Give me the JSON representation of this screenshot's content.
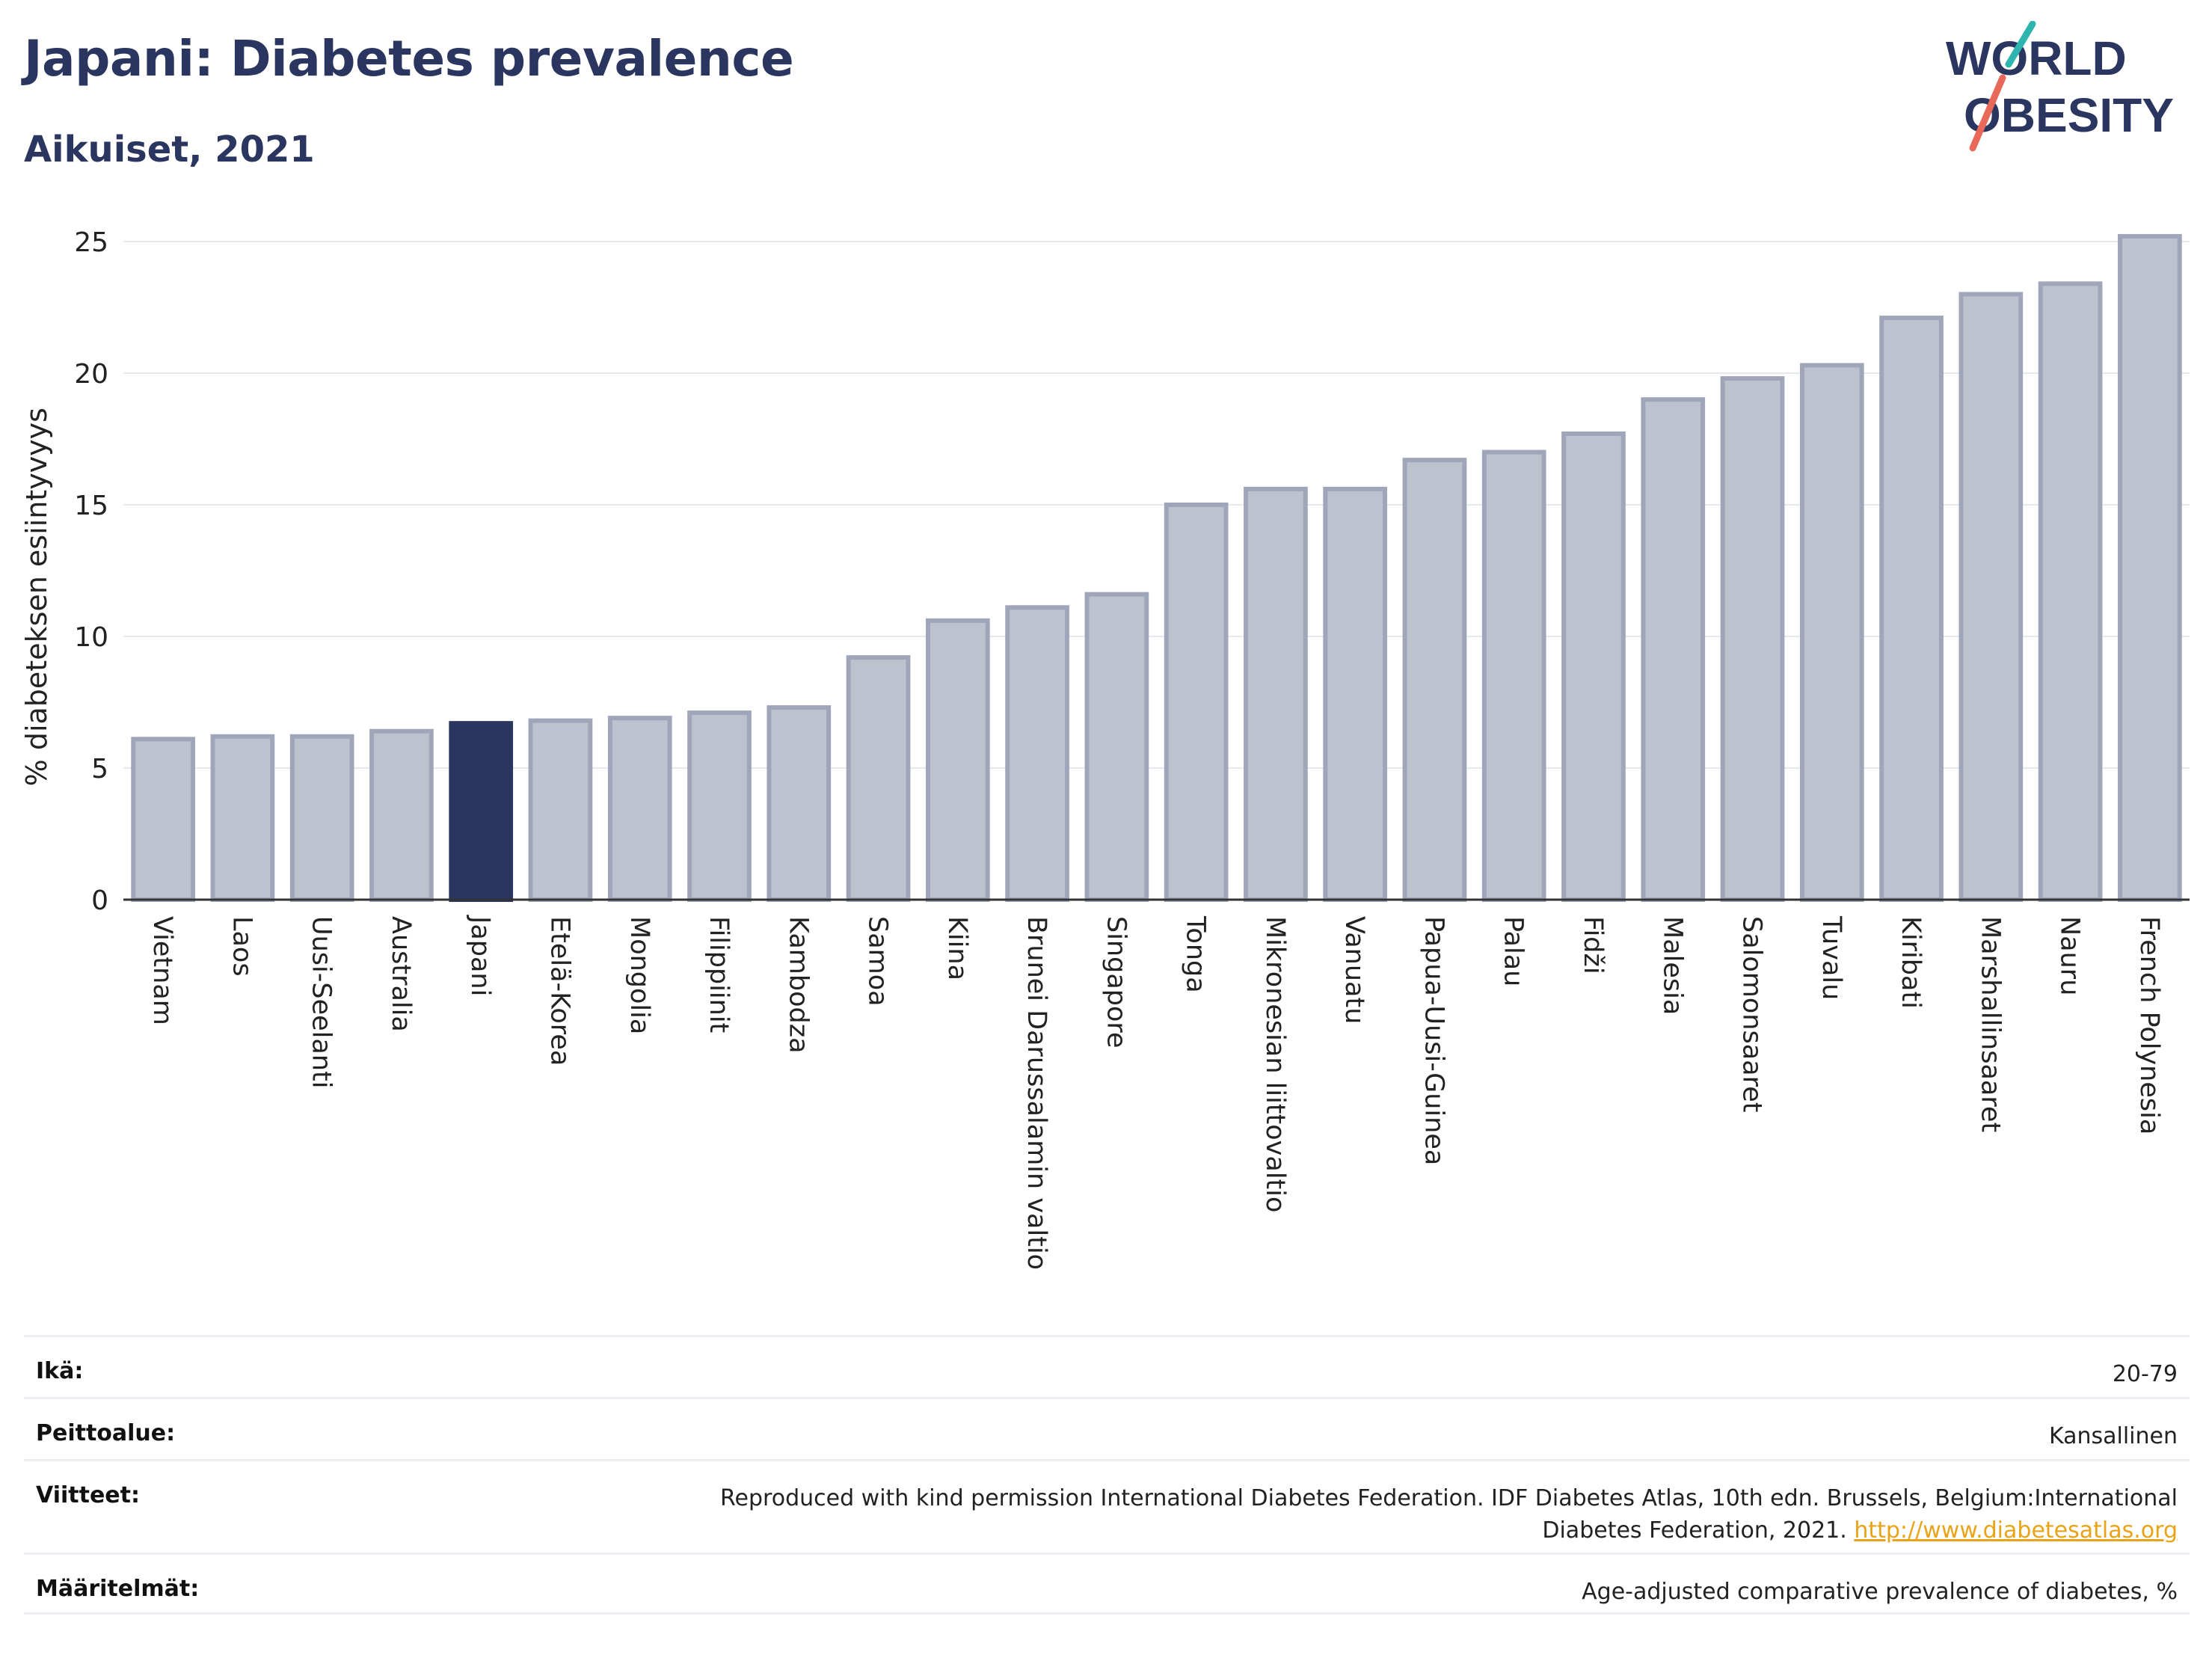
{
  "header": {
    "title": "Japani: Diabetes prevalence",
    "subtitle": "Aikuiset, 2021"
  },
  "logo": {
    "line1": "WORLD",
    "line2": "OBESITY",
    "colors": {
      "text": "#2b3660",
      "slash_teal": "#2fb5b0",
      "slash_coral": "#e8685a"
    }
  },
  "chart_data": {
    "type": "bar",
    "ylabel": "% diabeteksen esiintyvyys",
    "xlabel": "",
    "ylim": [
      0,
      26
    ],
    "yticks": [
      0,
      5,
      10,
      15,
      20,
      25
    ],
    "grid": true,
    "highlight": "Japani",
    "colors": {
      "bar": "#bec2cf",
      "bar_edge": "#a0a6ba",
      "highlight": "#2b3660",
      "grid": "#e6e8ee"
    },
    "categories": [
      "Vietnam",
      "Laos",
      "Uusi-Seelanti",
      "Australia",
      "Japani",
      "Etelä-Korea",
      "Mongolia",
      "Filippiinit",
      "Kambodza",
      "Samoa",
      "Kiina",
      "Brunei Darussalamin valtio",
      "Singapore",
      "Tonga",
      "Mikronesian liittovaltio",
      "Vanuatu",
      "Papua-Uusi-Guinea",
      "Palau",
      "Fidži",
      "Malesia",
      "Salomonsaaret",
      "Tuvalu",
      "Kiribati",
      "Marshallinsaaret",
      "Nauru",
      "French Polynesia"
    ],
    "values": [
      6.1,
      6.2,
      6.2,
      6.4,
      6.7,
      6.8,
      6.9,
      7.1,
      7.3,
      9.2,
      10.6,
      11.1,
      11.6,
      15.0,
      15.6,
      15.6,
      16.7,
      17.0,
      17.7,
      19.0,
      19.8,
      20.3,
      22.1,
      23.0,
      23.4,
      25.2
    ]
  },
  "info": {
    "age": {
      "label": "Ikä:",
      "value": "20-79"
    },
    "coverage": {
      "label": "Peittoalue:",
      "value": "Kansallinen"
    },
    "references": {
      "label": "Viitteet:",
      "value": "Reproduced with kind permission International Diabetes Federation.  IDF Diabetes Atlas, 10th edn. Brussels, Belgium:International Diabetes Federation, 2021.",
      "link": "http://www.diabetesatlas.org"
    },
    "definitions": {
      "label": "Määritelmät:",
      "value": "Age-adjusted comparative prevalence of diabetes, %"
    }
  }
}
